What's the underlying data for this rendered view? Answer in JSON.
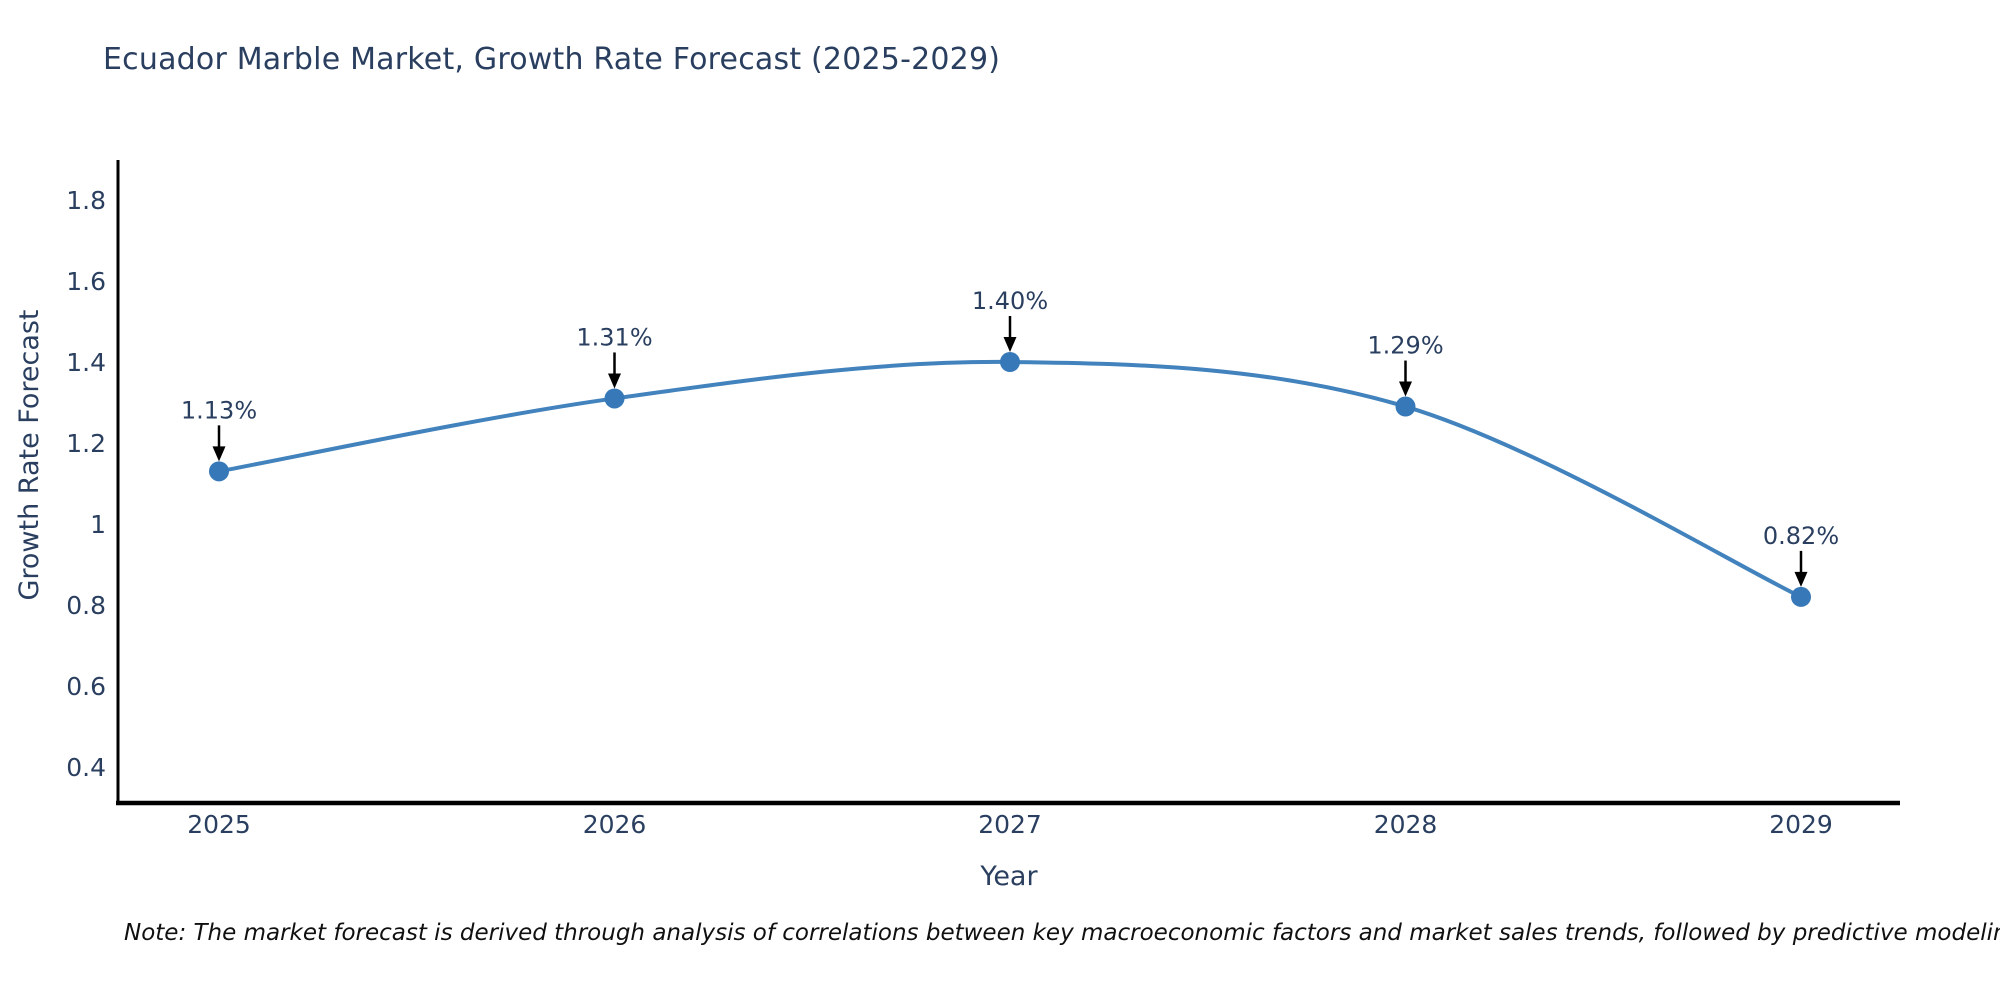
{
  "header": {
    "title": "Ecuador Marble Market, Growth Rate Forecast (2025-2029)"
  },
  "chart_data": {
    "type": "line",
    "title": "Ecuador Marble Market, Growth Rate Forecast (2025-2029)",
    "xlabel": "Year",
    "ylabel": "Growth Rate Forecast",
    "x": [
      2025,
      2026,
      2027,
      2028,
      2029
    ],
    "series": [
      {
        "name": "Growth Rate Forecast",
        "values": [
          1.13,
          1.31,
          1.4,
          1.29,
          0.82
        ]
      }
    ],
    "point_labels": [
      "1.13%",
      "1.31%",
      "1.40%",
      "1.29%",
      "0.82%"
    ],
    "y_ticks": [
      0.4,
      0.6,
      0.8,
      1,
      1.2,
      1.4,
      1.6,
      1.8
    ],
    "x_ticks": [
      "2025",
      "2026",
      "2027",
      "2028",
      "2029"
    ],
    "ylim": [
      0.31,
      1.9
    ],
    "grid": false,
    "legend": "none",
    "line_shape": "spline",
    "annotation_style": "value label with downward black arrow to each marker",
    "colors": {
      "line": "#4282bd",
      "marker": "#3779b8",
      "text": "#2a3f5f",
      "axis": "#000000",
      "annotation_arrow": "#000000"
    }
  },
  "footer": {
    "note": "Note: The market forecast is derived through analysis of correlations between key macroeconomic factors and market sales trends, followed by predictive modeling to project future sales"
  }
}
